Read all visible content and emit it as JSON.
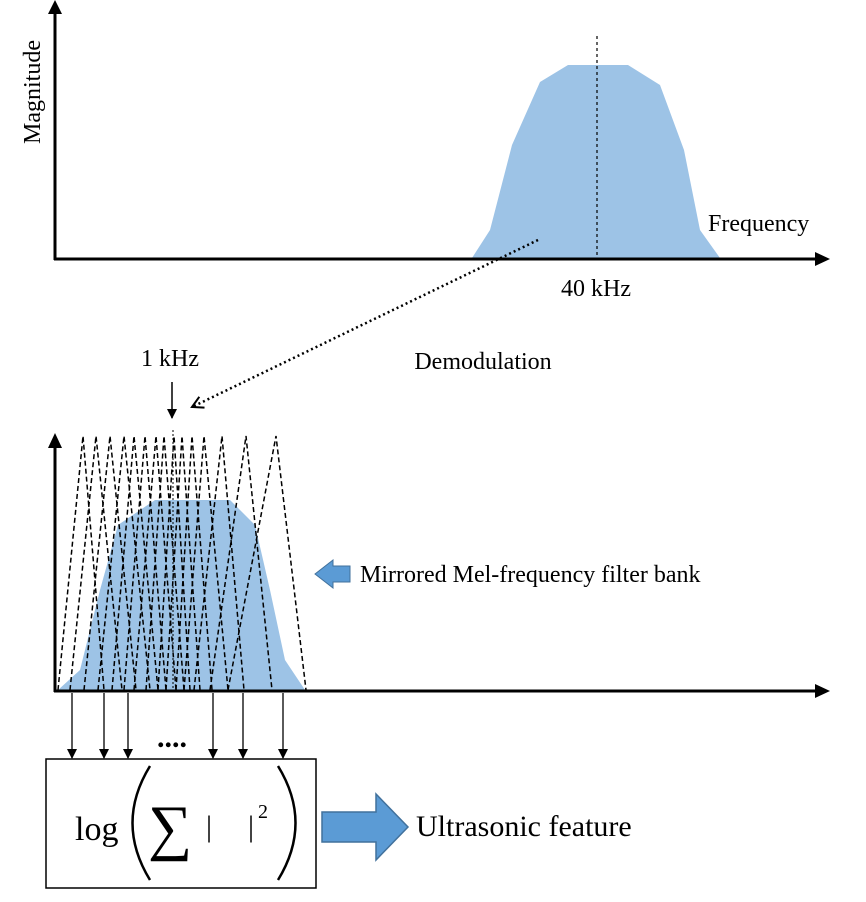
{
  "top_plot": {
    "y_axis_label": "Magnitude",
    "x_axis_label": "Frequency",
    "center_label": "40 kHz",
    "spectrum_fill_color": "#9dc3e6"
  },
  "demodulation": {
    "label": "Demodulation",
    "center_label": "1 kHz"
  },
  "bottom_plot": {
    "filter_bank_label": "Mirrored Mel-frequency filter bank",
    "ellipsis": "....",
    "spectrum_fill_color": "#9dc3e6",
    "arrow_color": "#5b9bd5"
  },
  "formula_box": {
    "log_text": "log",
    "sigma": "∑",
    "left_bar": "|",
    "right_bar": "|",
    "exponent": "2"
  },
  "output": {
    "label": "Ultrasonic feature"
  }
}
